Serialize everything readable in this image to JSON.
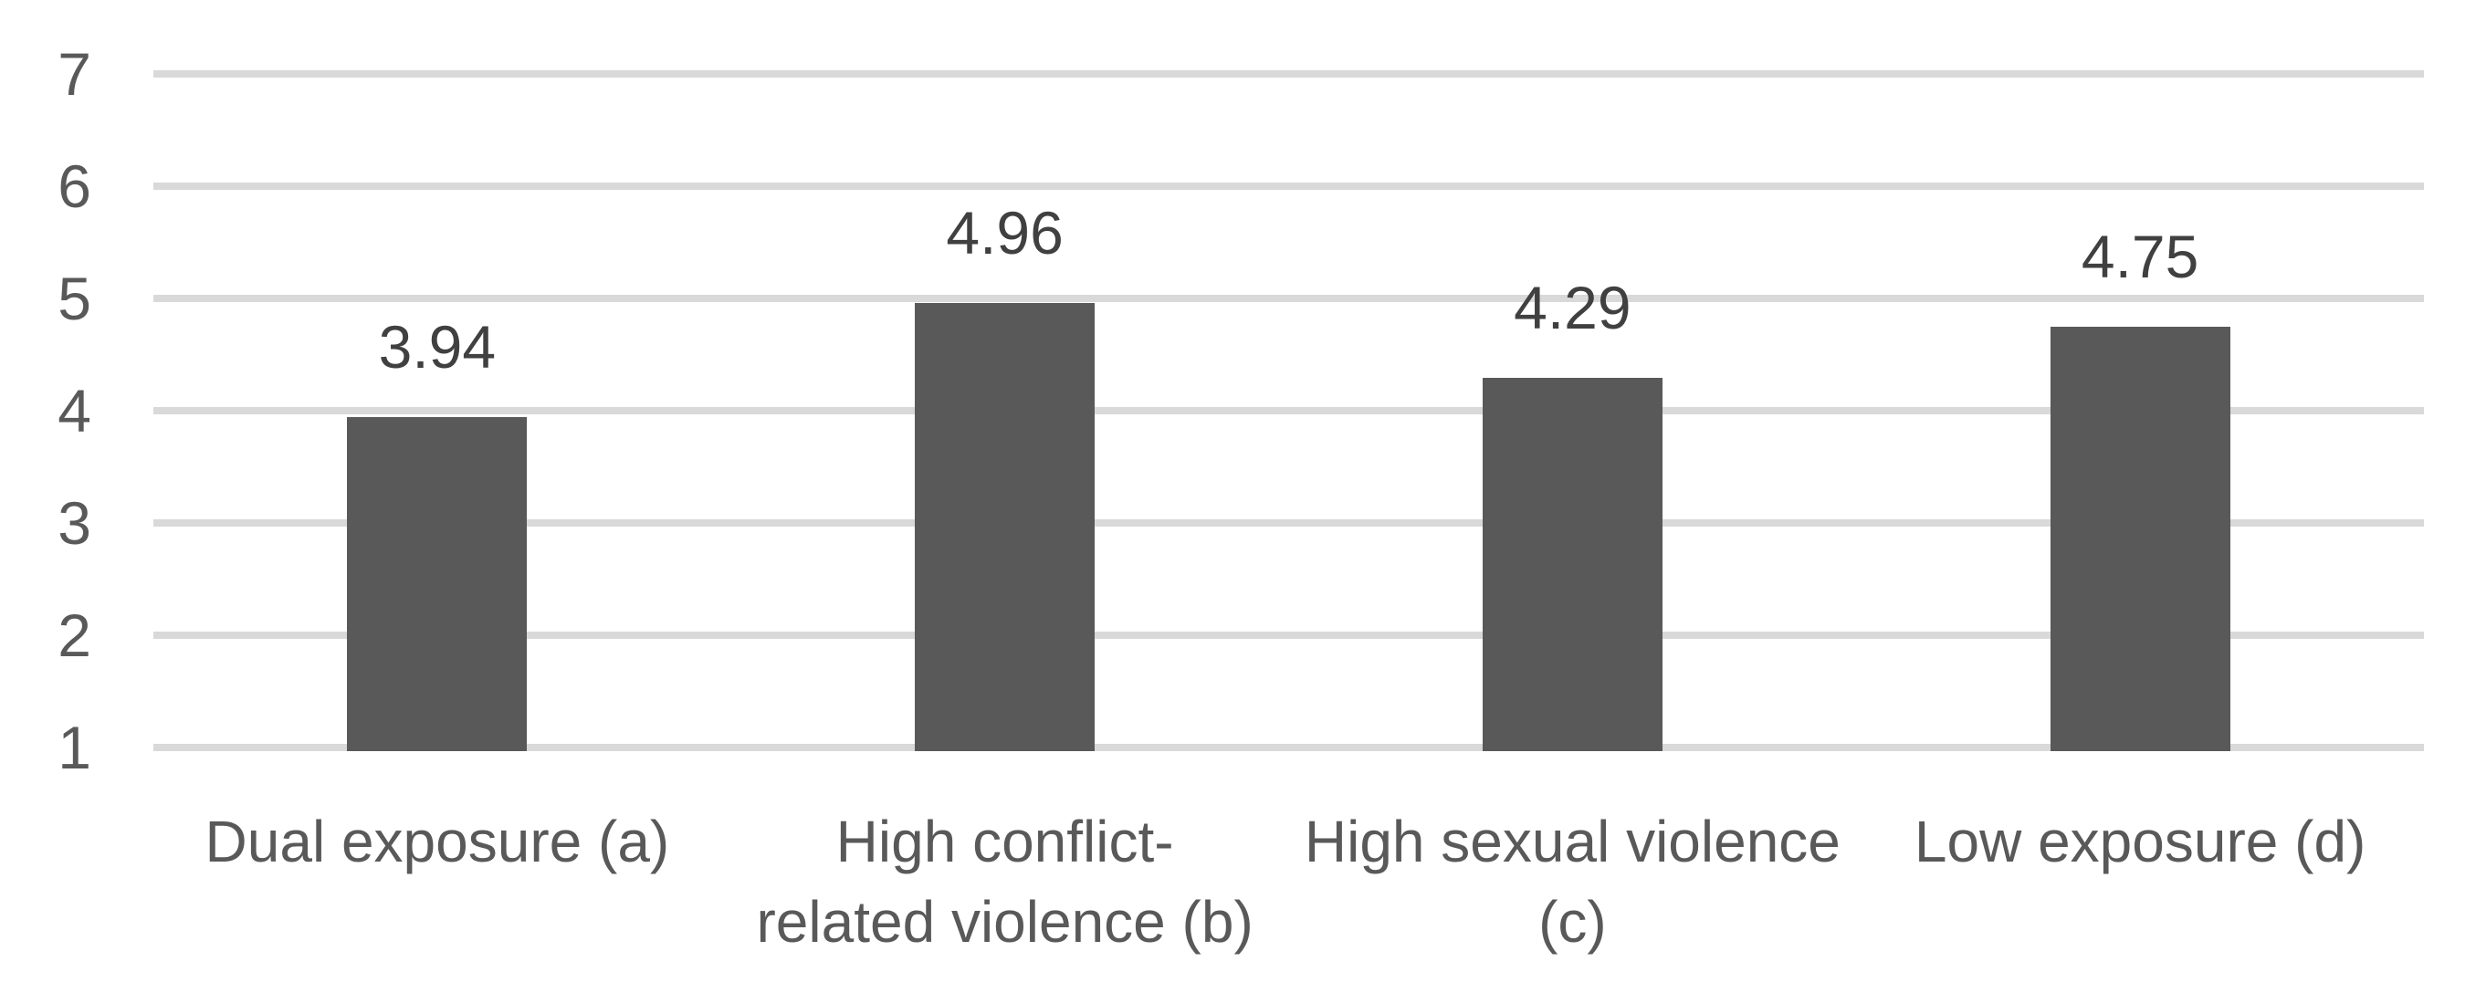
{
  "chart_data": {
    "type": "bar",
    "title": "",
    "xlabel": "",
    "ylabel": "",
    "categories": [
      "Dual exposure (a)",
      "High conflict-related violence (b)",
      "High sexual violence (c)",
      "Low exposure (d)"
    ],
    "categories_display": [
      {
        "line1": "Dual exposure (a)",
        "line2": ""
      },
      {
        "line1": "High conflict-",
        "line2": "related violence (b)"
      },
      {
        "line1": "High sexual violence",
        "line2": "(c)"
      },
      {
        "line1": "Low exposure (d)",
        "line2": ""
      }
    ],
    "values": [
      3.94,
      4.96,
      4.29,
      4.75
    ],
    "value_labels": [
      "3.94",
      "4.96",
      "4.29",
      "4.75"
    ],
    "y_ticks": [
      7,
      6,
      5,
      4,
      3,
      2,
      1
    ],
    "ylim": [
      1,
      7
    ],
    "grid": "horizontal",
    "legend": "none",
    "bar_color": "#595959",
    "gridline_color": "#d9d9d9",
    "data_label_color": "#404040",
    "axis_text_color": "#595959",
    "background_color": "#ffffff"
  }
}
